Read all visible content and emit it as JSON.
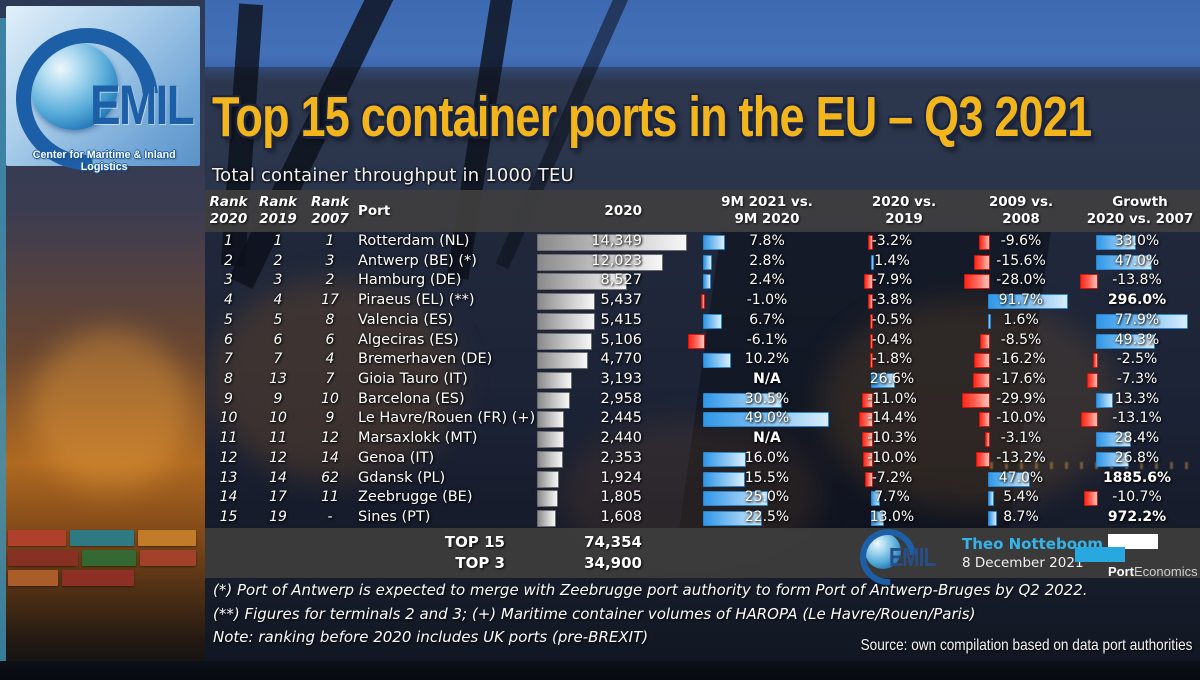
{
  "title": "Top 15 container ports in the EU – Q3 2021",
  "subtitle": "Total container throughput in 1000 TEU",
  "logo": {
    "monogram": "EMIL",
    "tagline": "Center for Maritime & Inland Logistics"
  },
  "table_header": {
    "rank2020": [
      "Rank",
      "2020"
    ],
    "rank2019": [
      "Rank",
      "2019"
    ],
    "rank2007": [
      "Rank",
      "2007"
    ],
    "port": "Port",
    "teu2020": "2020",
    "col9m": [
      "9M 2021 vs.",
      "9M 2020"
    ],
    "col2019": [
      "2020 vs.",
      "2019"
    ],
    "col2008": [
      "2009 vs.",
      "2008"
    ],
    "colgrowth": [
      "Growth",
      "2020 vs. 2007"
    ]
  },
  "chart_data": {
    "type": "table",
    "title": "Top 15 container ports in the EU – Q3 2021",
    "unit": "1000 TEU",
    "columns": [
      "Rank 2020",
      "Rank 2019",
      "Rank 2007",
      "Port",
      "2020",
      "9M 2021 vs. 9M 2020",
      "2020 vs. 2019",
      "2009 vs. 2008",
      "Growth 2020 vs. 2007"
    ],
    "rows": [
      {
        "rank2020": "1",
        "rank2019": "1",
        "rank2007": "1",
        "port": "Rotterdam (NL)",
        "teu": "14,349",
        "teu_value": 14349,
        "p9m": {
          "label": "7.8%",
          "value": 7.8
        },
        "p19": {
          "label": "-3.2%",
          "value": -3.2
        },
        "p08": {
          "label": "-9.6%",
          "value": -9.6
        },
        "gr": {
          "label": "33.0%",
          "value": 33.0
        }
      },
      {
        "rank2020": "2",
        "rank2019": "2",
        "rank2007": "3",
        "port": "Antwerp (BE) (*)",
        "teu": "12,023",
        "teu_value": 12023,
        "p9m": {
          "label": "2.8%",
          "value": 2.8
        },
        "p19": {
          "label": "1.4%",
          "value": 1.4
        },
        "p08": {
          "label": "-15.6%",
          "value": -15.6
        },
        "gr": {
          "label": "47.0%",
          "value": 47.0
        }
      },
      {
        "rank2020": "3",
        "rank2019": "3",
        "rank2007": "2",
        "port": "Hamburg (DE)",
        "teu": "8,527",
        "teu_value": 8527,
        "p9m": {
          "label": "2.4%",
          "value": 2.4
        },
        "p19": {
          "label": "-7.9%",
          "value": -7.9
        },
        "p08": {
          "label": "-28.0%",
          "value": -28.0
        },
        "gr": {
          "label": "-13.8%",
          "value": -13.8
        }
      },
      {
        "rank2020": "4",
        "rank2019": "4",
        "rank2007": "17",
        "port": "Piraeus (EL) (**)",
        "teu": "5,437",
        "teu_value": 5437,
        "p9m": {
          "label": "-1.0%",
          "value": -1.0
        },
        "p19": {
          "label": "-3.8%",
          "value": -3.8
        },
        "p08": {
          "label": "91.7%",
          "value": 91.7
        },
        "gr": {
          "label": "296.0%",
          "value": 296.0,
          "bar": false,
          "bold": true
        }
      },
      {
        "rank2020": "5",
        "rank2019": "5",
        "rank2007": "8",
        "port": "Valencia (ES)",
        "teu": "5,415",
        "teu_value": 5415,
        "p9m": {
          "label": "6.7%",
          "value": 6.7
        },
        "p19": {
          "label": "-0.5%",
          "value": -0.5
        },
        "p08": {
          "label": "1.6%",
          "value": 1.6
        },
        "gr": {
          "label": "77.9%",
          "value": 77.9
        }
      },
      {
        "rank2020": "6",
        "rank2019": "6",
        "rank2007": "6",
        "port": "Algeciras (ES)",
        "teu": "5,106",
        "teu_value": 5106,
        "p9m": {
          "label": "-6.1%",
          "value": -6.1
        },
        "p19": {
          "label": "-0.4%",
          "value": -0.4
        },
        "p08": {
          "label": "-8.5%",
          "value": -8.5
        },
        "gr": {
          "label": "49.3%",
          "value": 49.3
        }
      },
      {
        "rank2020": "7",
        "rank2019": "7",
        "rank2007": "4",
        "port": "Bremerhaven (DE)",
        "teu": "4,770",
        "teu_value": 4770,
        "p9m": {
          "label": "10.2%",
          "value": 10.2
        },
        "p19": {
          "label": "-1.8%",
          "value": -1.8
        },
        "p08": {
          "label": "-16.2%",
          "value": -16.2
        },
        "gr": {
          "label": "-2.5%",
          "value": -2.5
        }
      },
      {
        "rank2020": "8",
        "rank2019": "13",
        "rank2007": "7",
        "port": "Gioia Tauro (IT)",
        "teu": "3,193",
        "teu_value": 3193,
        "p9m": {
          "label": "N/A",
          "value": null,
          "bold": true
        },
        "p19": {
          "label": "26.6%",
          "value": 26.6
        },
        "p08": {
          "label": "-17.6%",
          "value": -17.6
        },
        "gr": {
          "label": "-7.3%",
          "value": -7.3
        }
      },
      {
        "rank2020": "9",
        "rank2019": "9",
        "rank2007": "10",
        "port": "Barcelona (ES)",
        "teu": "2,958",
        "teu_value": 2958,
        "p9m": {
          "label": "30.5%",
          "value": 30.5
        },
        "p19": {
          "label": "-11.0%",
          "value": -11.0
        },
        "p08": {
          "label": "-29.9%",
          "value": -29.9
        },
        "gr": {
          "label": "13.3%",
          "value": 13.3
        }
      },
      {
        "rank2020": "10",
        "rank2019": "10",
        "rank2007": "9",
        "port": "Le Havre/Rouen (FR) (+)",
        "teu": "2,445",
        "teu_value": 2445,
        "p9m": {
          "label": "49.0%",
          "value": 49.0
        },
        "p19": {
          "label": "-14.4%",
          "value": -14.4
        },
        "p08": {
          "label": "-10.0%",
          "value": -10.0
        },
        "gr": {
          "label": "-13.1%",
          "value": -13.1
        }
      },
      {
        "rank2020": "11",
        "rank2019": "11",
        "rank2007": "12",
        "port": "Marsaxlokk (MT)",
        "teu": "2,440",
        "teu_value": 2440,
        "p9m": {
          "label": "N/A",
          "value": null,
          "bold": true
        },
        "p19": {
          "label": "-10.3%",
          "value": -10.3
        },
        "p08": {
          "label": "-3.1%",
          "value": -3.1
        },
        "gr": {
          "label": "28.4%",
          "value": 28.4
        }
      },
      {
        "rank2020": "12",
        "rank2019": "12",
        "rank2007": "14",
        "port": "Genoa (IT)",
        "teu": "2,353",
        "teu_value": 2353,
        "p9m": {
          "label": "16.0%",
          "value": 16.0
        },
        "p19": {
          "label": "-10.0%",
          "value": -10.0
        },
        "p08": {
          "label": "-13.2%",
          "value": -13.2
        },
        "gr": {
          "label": "26.8%",
          "value": 26.8
        }
      },
      {
        "rank2020": "13",
        "rank2019": "14",
        "rank2007": "62",
        "port": "Gdansk (PL)",
        "teu": "1,924",
        "teu_value": 1924,
        "p9m": {
          "label": "15.5%",
          "value": 15.5
        },
        "p19": {
          "label": "-7.2%",
          "value": -7.2
        },
        "p08": {
          "label": "47.0%",
          "value": 47.0
        },
        "gr": {
          "label": "1885.6%",
          "value": 1885.6,
          "bar": false,
          "bold": true
        }
      },
      {
        "rank2020": "14",
        "rank2019": "17",
        "rank2007": "11",
        "port": "Zeebrugge (BE)",
        "teu": "1,805",
        "teu_value": 1805,
        "p9m": {
          "label": "25.0%",
          "value": 25.0
        },
        "p19": {
          "label": "7.7%",
          "value": 7.7
        },
        "p08": {
          "label": "5.4%",
          "value": 5.4
        },
        "gr": {
          "label": "-10.7%",
          "value": -10.7
        }
      },
      {
        "rank2020": "15",
        "rank2019": "19",
        "rank2007": "-",
        "port": "Sines (PT)",
        "teu": "1,608",
        "teu_value": 1608,
        "p9m": {
          "label": "22.5%",
          "value": 22.5
        },
        "p19": {
          "label": "13.0%",
          "value": 13.0
        },
        "p08": {
          "label": "8.7%",
          "value": 8.7
        },
        "gr": {
          "label": "972.2%",
          "value": 972.2,
          "bar": false,
          "bold": true
        }
      }
    ],
    "totals": [
      {
        "label": "TOP 15",
        "value": "74,354"
      },
      {
        "label": "TOP 3",
        "value": "34,900"
      }
    ]
  },
  "footnotes": [
    "(*) Port of Antwerp is expected to merge with Zeebrugge port authority to form Port of Antwerp-Bruges by Q2 2022.",
    "(**) Figures for terminals 2 and 3; (+) Maritime container volumes of HAROPA (Le Havre/Rouen/Paris)",
    "Note: ranking before 2020 includes UK ports (pre-BREXIT)"
  ],
  "attribution": {
    "author": "Theo Notteboom",
    "date": "8 December 2021",
    "brand_bold": "Port",
    "brand_rest": "Economics"
  },
  "source": "Source: own compilation based on data port authorities",
  "colors": {
    "title_gold": "#F2B51C",
    "bar_blue": "#2F97E8",
    "bar_red": "#FF251A",
    "bar_gray": "#9A9A9A",
    "band_gray": "#3C3C3C",
    "author_blue": "#35B4EA",
    "porteconomics_cyan": "#29A8DF"
  }
}
